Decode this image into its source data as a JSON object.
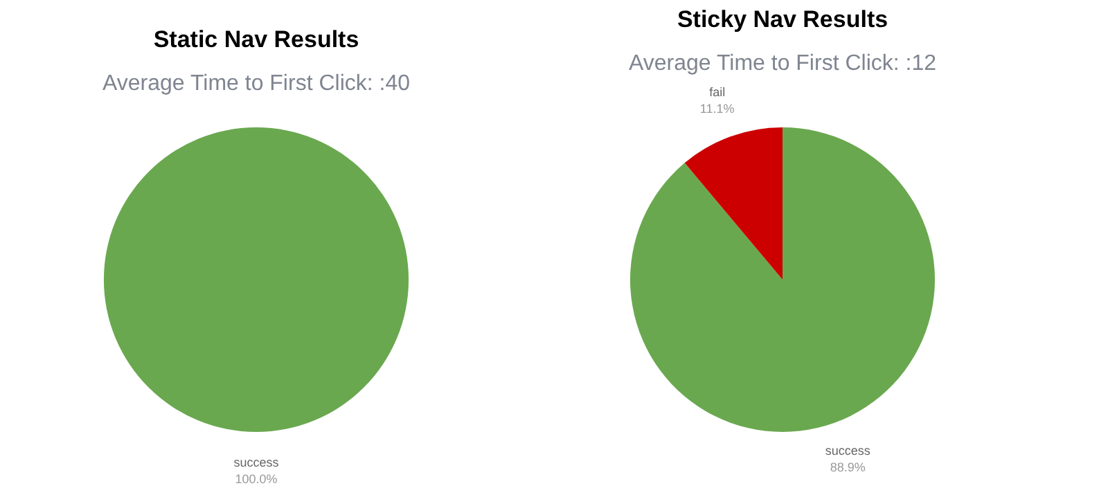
{
  "chart_data": [
    {
      "type": "pie",
      "title": "Static Nav Results",
      "subtitle": "Average Time to First Click:  :40",
      "categories": [
        "success"
      ],
      "values": [
        100
      ],
      "colors": [
        "#6aa84f"
      ],
      "value_labels": [
        "100.0%"
      ]
    },
    {
      "type": "pie",
      "title": "Sticky Nav Results",
      "subtitle": "Average Time to First Click:  :12",
      "categories": [
        "success",
        "fail"
      ],
      "values": [
        88.9,
        11.1
      ],
      "colors": [
        "#6aa84f",
        "#cc0000"
      ],
      "value_labels": [
        "88.9%",
        "11.1%"
      ]
    }
  ]
}
